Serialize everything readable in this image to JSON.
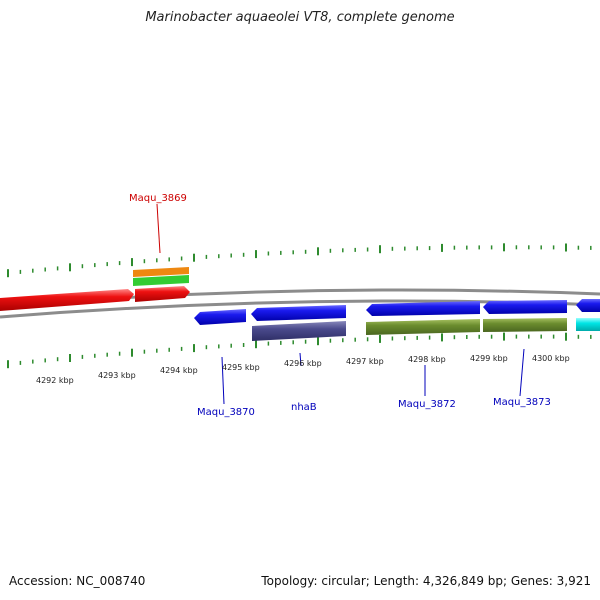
{
  "title": "Marinobacter aquaeolei VT8, complete genome",
  "footer": {
    "accession": "Accession: NC_008740",
    "summary": "Topology: circular; Length: 4,326,849 bp; Genes: 3,921"
  },
  "colors": {
    "tick": "#2e8b2e",
    "backbone": "#8c8c8c",
    "forward_gene": "#ee1111",
    "reverse_gene": "#1a1aee",
    "rna_orange": "#ee8811",
    "rna_green": "#33cc33",
    "protein_purple": "#4a4a8c",
    "protein_olive": "#6b8c2e",
    "cyan": "#00e5e5",
    "forward_label": "#cc0000",
    "reverse_label": "#0000bb"
  },
  "scale": {
    "labels": [
      "4292 kbp",
      "4293 kbp",
      "4294 kbp",
      "4295 kbp",
      "4296 kbp",
      "4297 kbp",
      "4298 kbp",
      "4299 kbp",
      "4300 kbp"
    ]
  },
  "gene_labels": {
    "maqu_3869": "Maqu_3869",
    "maqu_3870": "Maqu_3870",
    "nhaB": "nhaB",
    "maqu_3872": "Maqu_3872",
    "maqu_3873": "Maqu_3873"
  }
}
